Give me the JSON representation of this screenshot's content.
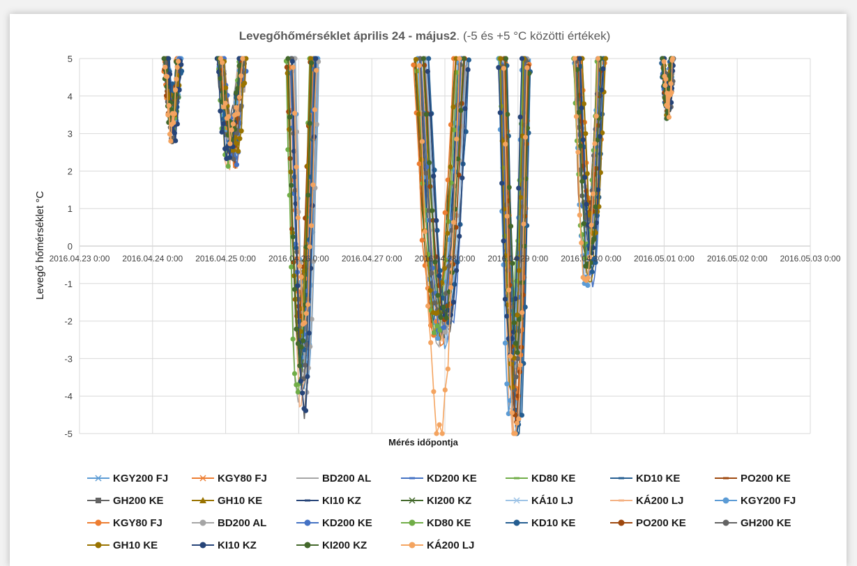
{
  "chart_data": {
    "type": "line",
    "title_bold": "Levegőhőmérséklet április 24 - május2",
    "title_rest": ". (-5 és +5 °C közötti értékek)",
    "xlabel": "Mérés időpontja",
    "ylabel": "Levegő hőmérséklet °C",
    "ylim": [
      -5,
      5
    ],
    "yticks": [
      -5,
      -4,
      -3,
      -2,
      -1,
      0,
      1,
      2,
      3,
      4,
      5
    ],
    "x_ticks": [
      "2016.04.23 0:00",
      "2016.04.24 0:00",
      "2016.04.25 0:00",
      "2016.04.26 0:00",
      "2016.04.27 0:00",
      "2016.04.28 0:00",
      "2016.04.29 0:00",
      "2016.04.30 0:00",
      "2016.05.01 0:00",
      "2016.05.02 0:00",
      "2016.05.03 0:00"
    ],
    "grid": "both",
    "legend_position": "bottom",
    "series": [
      {
        "name": "KGY200 FJ",
        "color": "#5b9bd5",
        "marker": "x"
      },
      {
        "name": "KGY80 FJ",
        "color": "#ed7d31",
        "marker": "x"
      },
      {
        "name": "BD200 AL",
        "color": "#a5a5a5",
        "marker": "none"
      },
      {
        "name": "KD200 KE",
        "color": "#4472c4",
        "marker": "dash"
      },
      {
        "name": "KD80 KE",
        "color": "#70ad47",
        "marker": "dash"
      },
      {
        "name": "KD10 KE",
        "color": "#255e91",
        "marker": "dash"
      },
      {
        "name": "PO200 KE",
        "color": "#9e480e",
        "marker": "dash"
      },
      {
        "name": "GH200 KE",
        "color": "#636363",
        "marker": "square"
      },
      {
        "name": "GH10 KE",
        "color": "#997300",
        "marker": "triangle"
      },
      {
        "name": "KI10 KZ",
        "color": "#264478",
        "marker": "dash"
      },
      {
        "name": "KI200 KZ",
        "color": "#43682b",
        "marker": "x"
      },
      {
        "name": "KÁ10 LJ",
        "color": "#9dc3e6",
        "marker": "x"
      },
      {
        "name": "KÁ200 LJ",
        "color": "#f4b183",
        "marker": "dash"
      },
      {
        "name": "KGY200 FJ",
        "color": "#5b9bd5",
        "marker": "circle"
      },
      {
        "name": "KGY80 FJ",
        "color": "#ed7d31",
        "marker": "circle"
      },
      {
        "name": "BD200 AL",
        "color": "#a5a5a5",
        "marker": "circle"
      },
      {
        "name": "KD200 KE",
        "color": "#4472c4",
        "marker": "circle"
      },
      {
        "name": "KD80 KE",
        "color": "#70ad47",
        "marker": "circle"
      },
      {
        "name": "KD10 KE",
        "color": "#255e91",
        "marker": "circle"
      },
      {
        "name": "PO200 KE",
        "color": "#9e480e",
        "marker": "circle"
      },
      {
        "name": "GH200 KE",
        "color": "#636363",
        "marker": "circle"
      },
      {
        "name": "GH10 KE",
        "color": "#997300",
        "marker": "circle"
      },
      {
        "name": "KI10 KZ",
        "color": "#264478",
        "marker": "circle"
      },
      {
        "name": "KI200 KZ",
        "color": "#43682b",
        "marker": "circle"
      },
      {
        "name": "KÁ200 LJ",
        "color": "#f4a460",
        "marker": "circle"
      }
    ]
  }
}
